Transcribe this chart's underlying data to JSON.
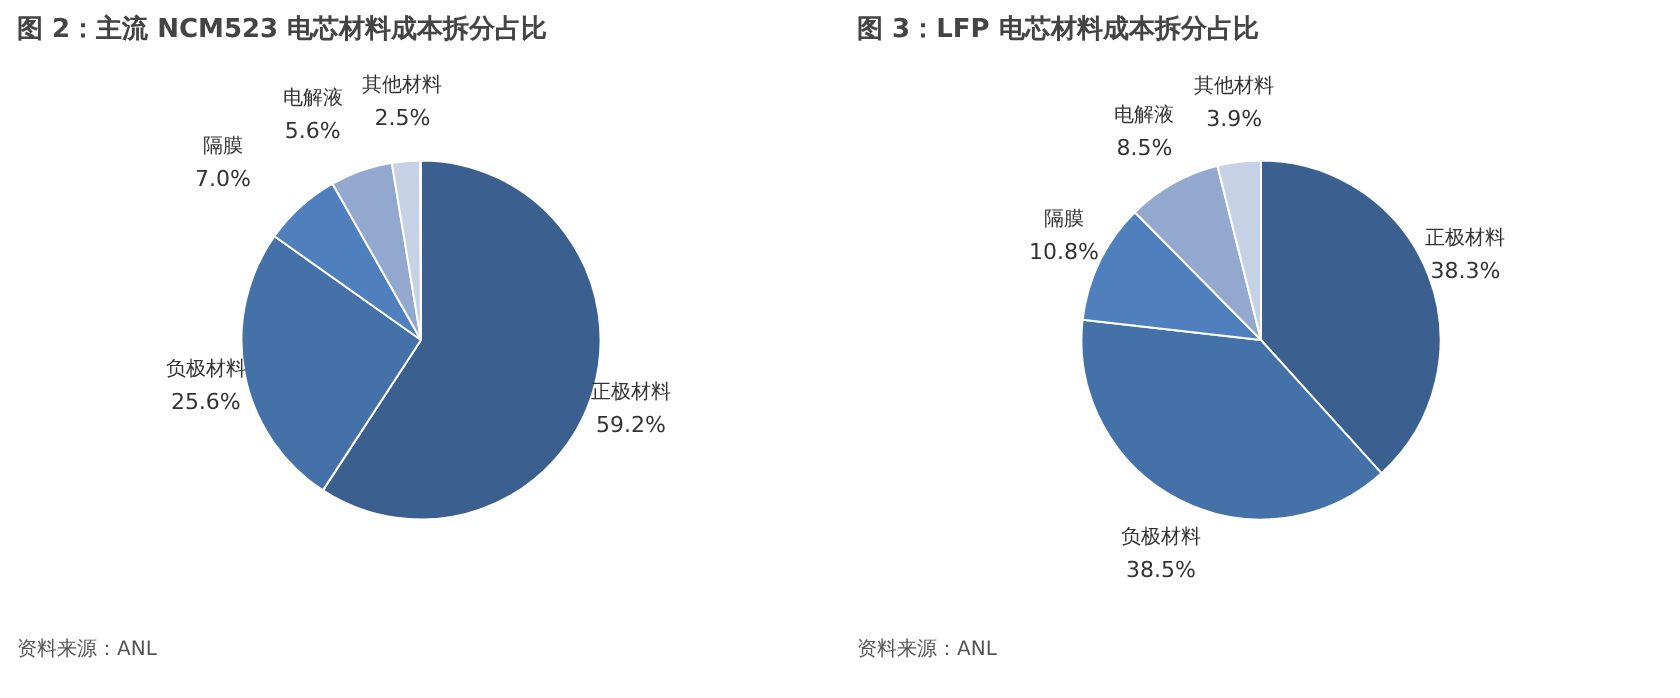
{
  "chart_data": [
    {
      "type": "pie",
      "title": "图 2：主流 NCM523 电芯材料成本拆分占比",
      "categories": [
        "正极材料",
        "负极材料",
        "隔膜",
        "电解液",
        "其他材料"
      ],
      "values": [
        59.2,
        25.6,
        7.0,
        5.6,
        2.5
      ],
      "value_labels": [
        "59.2%",
        "25.6%",
        "7.0%",
        "5.6%",
        "2.5%"
      ],
      "colors": [
        "#3b5f8e",
        "#4472a8",
        "#4f80bd",
        "#93a8cf",
        "#c6d1e5"
      ],
      "legend": false,
      "annotations": [
        "资料来源：ANL"
      ]
    },
    {
      "type": "pie",
      "title": "图 3：LFP 电芯材料成本拆分占比",
      "categories": [
        "正极材料",
        "负极材料",
        "隔膜",
        "电解液",
        "其他材料"
      ],
      "values": [
        38.3,
        38.5,
        10.8,
        8.5,
        3.9
      ],
      "value_labels": [
        "38.3%",
        "38.5%",
        "10.8%",
        "8.5%",
        "3.9%"
      ],
      "colors": [
        "#3b5f8e",
        "#4472a8",
        "#4f80bd",
        "#93a8cf",
        "#c6d1e5"
      ],
      "legend": false,
      "annotations": [
        "资料来源：ANL"
      ]
    }
  ]
}
